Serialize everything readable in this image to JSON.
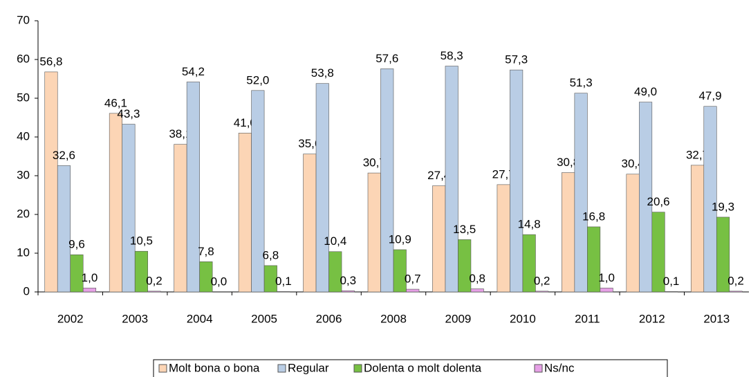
{
  "chart_data": {
    "type": "bar",
    "categories": [
      "2002",
      "2003",
      "2004",
      "2005",
      "2006",
      "2008",
      "2009",
      "2010",
      "2011",
      "2012",
      "2013"
    ],
    "series": [
      {
        "name": "Molt bona o bona",
        "color": "#fcd5b5",
        "values": [
          56.8,
          46.1,
          38.1,
          41.0,
          35.6,
          30.7,
          27.4,
          27.7,
          30.8,
          30.4,
          32.7
        ],
        "value_labels": [
          "56,8",
          "46,1",
          "38,1",
          "41,0",
          "35,6",
          "30,7",
          "27,4",
          "27,7",
          "30,8",
          "30,4",
          "32,7"
        ]
      },
      {
        "name": "Regular",
        "color": "#b9cde5",
        "values": [
          32.6,
          43.3,
          54.2,
          52.0,
          53.8,
          57.6,
          58.3,
          57.3,
          51.3,
          49.0,
          47.9
        ],
        "value_labels": [
          "32,6",
          "43,3",
          "54,2",
          "52,0",
          "53,8",
          "57,6",
          "58,3",
          "57,3",
          "51,3",
          "49,0",
          "47,9"
        ]
      },
      {
        "name": "Dolenta o molt dolenta",
        "color": "#77c043",
        "values": [
          9.6,
          10.5,
          7.8,
          6.8,
          10.4,
          10.9,
          13.5,
          14.8,
          16.8,
          20.6,
          19.3
        ],
        "value_labels": [
          "9,6",
          "10,5",
          "7,8",
          "6,8",
          "10,4",
          "10,9",
          "13,5",
          "14,8",
          "16,8",
          "20,6",
          "19,3"
        ]
      },
      {
        "name": "Ns/nc",
        "color": "#e6a0e6",
        "values": [
          1.0,
          0.2,
          0.0,
          0.1,
          0.3,
          0.7,
          0.8,
          0.2,
          1.0,
          0.1,
          0.2
        ],
        "value_labels": [
          "1,0",
          "0,2",
          "0,0",
          "0,1",
          "0,3",
          "0,7",
          "0,8",
          "0,2",
          "1,0",
          "0,1",
          "0,2"
        ]
      }
    ],
    "ylim": [
      0,
      70
    ],
    "yticks": [
      0,
      10,
      20,
      30,
      40,
      50,
      60,
      70
    ],
    "grid": false,
    "legend": "bottom"
  }
}
